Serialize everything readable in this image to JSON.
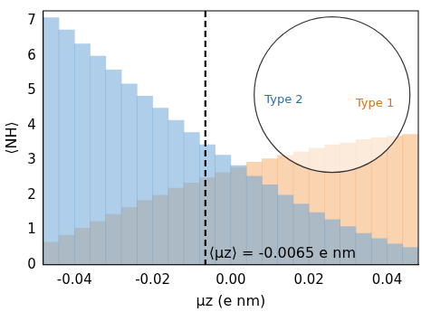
{
  "chart_data": {
    "type": "histogram",
    "xlabel": "μz (e nm)",
    "ylabel": "⟨NH⟩",
    "bins": [
      -0.048,
      -0.044,
      -0.04,
      -0.036,
      -0.032,
      -0.028,
      -0.024,
      -0.02,
      -0.016,
      -0.012,
      -0.008,
      -0.004,
      0,
      0.004,
      0.008,
      0.012,
      0.016,
      0.02,
      0.024,
      0.028,
      0.032,
      0.036,
      0.04,
      0.044,
      0.048
    ],
    "series": [
      {
        "name": "Type 2",
        "color": "rgba(110,165,215,0.55)",
        "values": [
          7.1,
          6.75,
          6.35,
          6.0,
          5.6,
          5.2,
          4.85,
          4.5,
          4.15,
          3.8,
          3.45,
          3.15,
          2.85,
          2.55,
          2.3,
          2.0,
          1.75,
          1.5,
          1.3,
          1.1,
          0.9,
          0.75,
          0.6,
          0.5
        ]
      },
      {
        "name": "Type 1",
        "color": "rgba(245,160,80,0.45)",
        "values": [
          0.65,
          0.85,
          1.05,
          1.25,
          1.45,
          1.65,
          1.85,
          2.0,
          2.2,
          2.35,
          2.5,
          2.65,
          2.8,
          2.95,
          3.05,
          3.15,
          3.25,
          3.35,
          3.45,
          3.5,
          3.6,
          3.65,
          3.7,
          3.75
        ]
      }
    ],
    "mean_line": {
      "x": -0.0065,
      "label": "⟨μz⟩ = -0.0065 e nm",
      "line_style": "dashed"
    },
    "xlim": [
      -0.048,
      0.048
    ],
    "xticks": [
      -0.04,
      -0.02,
      {
        "value": 0,
        "label": "0.00"
      },
      0.02,
      0.04
    ],
    "ylim": [
      0,
      7.3
    ],
    "yticks": [
      0,
      1,
      2,
      3,
      4,
      5,
      6,
      7
    ],
    "grid": false
  }
}
